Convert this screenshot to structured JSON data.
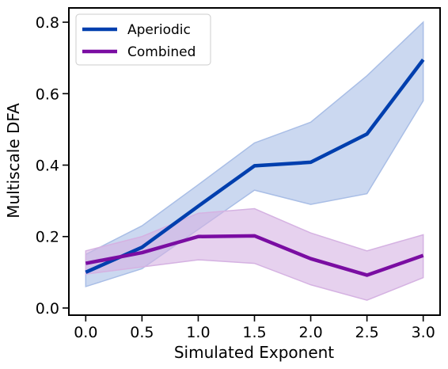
{
  "chart_data": {
    "type": "line",
    "title": "",
    "xlabel": "Simulated Exponent",
    "ylabel": "Multiscale DFA",
    "x": [
      0.0,
      0.5,
      1.0,
      1.5,
      2.0,
      2.5,
      3.0
    ],
    "xticks": [
      "0.0",
      "0.5",
      "1.0",
      "1.5",
      "2.0",
      "2.5",
      "3.0"
    ],
    "yticks": [
      "0.0",
      "0.2",
      "0.4",
      "0.6",
      "0.8"
    ],
    "xlim": [
      -0.15,
      3.15
    ],
    "ylim": [
      -0.02,
      0.84
    ],
    "grid": false,
    "legend_position": "top-left",
    "series": [
      {
        "name": "Aperiodic",
        "color": "#003fae",
        "band_color": "#a9bee6",
        "values": [
          0.1,
          0.17,
          0.285,
          0.398,
          0.408,
          0.487,
          0.695
        ],
        "lower": [
          0.06,
          0.11,
          0.22,
          0.33,
          0.29,
          0.32,
          0.58
        ],
        "upper": [
          0.15,
          0.23,
          0.345,
          0.462,
          0.52,
          0.65,
          0.8
        ]
      },
      {
        "name": "Combined",
        "color": "#7a0da2",
        "band_color": "#d5b2e2",
        "values": [
          0.125,
          0.155,
          0.2,
          0.202,
          0.138,
          0.092,
          0.147
        ],
        "lower": [
          0.095,
          0.115,
          0.135,
          0.125,
          0.065,
          0.022,
          0.085
        ],
        "upper": [
          0.16,
          0.2,
          0.265,
          0.278,
          0.21,
          0.16,
          0.205
        ]
      }
    ]
  }
}
